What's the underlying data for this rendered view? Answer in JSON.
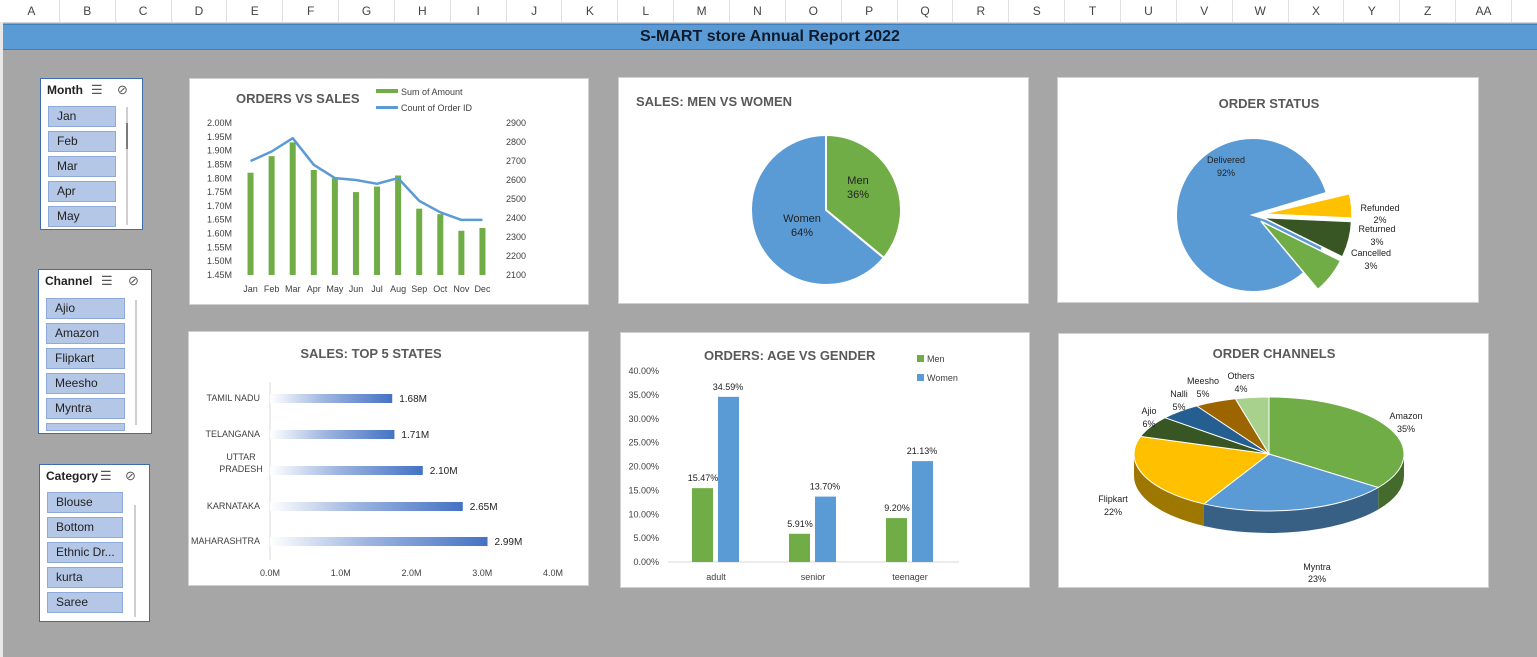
{
  "columns": [
    "A",
    "B",
    "C",
    "D",
    "E",
    "F",
    "G",
    "H",
    "I",
    "J",
    "K",
    "L",
    "M",
    "N",
    "O",
    "P",
    "Q",
    "R",
    "S",
    "T",
    "U",
    "V",
    "W",
    "X",
    "Y",
    "Z",
    "AA"
  ],
  "report_title": "S-MART store Annual Report 2022",
  "slicers": {
    "month": {
      "title": "Month",
      "items": [
        "Jan",
        "Feb",
        "Mar",
        "Apr",
        "May"
      ]
    },
    "channel": {
      "title": "Channel",
      "items": [
        "Ajio",
        "Amazon",
        "Flipkart",
        "Meesho",
        "Myntra"
      ]
    },
    "category": {
      "title": "Category",
      "items": [
        "Blouse",
        "Bottom",
        "Ethnic Dr...",
        "kurta",
        "Saree"
      ]
    }
  },
  "charts": {
    "orders_vs_sales": {
      "title": "ORDERS VS SALES",
      "legend": [
        "Sum of Amount",
        "Count of Order ID"
      ],
      "months": [
        "Jan",
        "Feb",
        "Mar",
        "Apr",
        "May",
        "Jun",
        "Jul",
        "Aug",
        "Sep",
        "Oct",
        "Nov",
        "Dec"
      ],
      "amount": [
        1.82,
        1.88,
        1.93,
        1.83,
        1.8,
        1.75,
        1.77,
        1.81,
        1.69,
        1.67,
        1.61,
        1.62
      ],
      "orders": [
        2700,
        2750,
        2820,
        2680,
        2610,
        2600,
        2580,
        2610,
        2490,
        2430,
        2390,
        2390
      ],
      "left_axis": [
        "2.00M",
        "1.95M",
        "1.90M",
        "1.85M",
        "1.80M",
        "1.75M",
        "1.70M",
        "1.65M",
        "1.60M",
        "1.55M",
        "1.50M",
        "1.45M"
      ],
      "right_axis": [
        "2900",
        "2800",
        "2700",
        "2600",
        "2500",
        "2400",
        "2300",
        "2200",
        "2100"
      ],
      "colors": {
        "bar": "#70ad47",
        "line": "#5b9bd5"
      }
    },
    "men_vs_women": {
      "title": "SALES: MEN VS WOMEN",
      "slices": [
        {
          "name": "Men",
          "pct_label": "36%",
          "value": 36,
          "color": "#70ad47"
        },
        {
          "name": "Women",
          "pct_label": "64%",
          "value": 64,
          "color": "#5b9bd5"
        }
      ]
    },
    "order_status": {
      "title": "ORDER STATUS",
      "slices": [
        {
          "name": "Delivered",
          "pct_label": "92%",
          "value": 92,
          "color": "#5b9bd5"
        },
        {
          "name": "Refunded",
          "pct_label": "2%",
          "value": 2,
          "color": "#ffc000"
        },
        {
          "name": "Returned",
          "pct_label": "3%",
          "value": 3,
          "color": "#375623"
        },
        {
          "name": "Cancelled",
          "pct_label": "3%",
          "value": 3,
          "color": "#70ad47"
        }
      ]
    },
    "top_states": {
      "title": "SALES: TOP 5 STATES",
      "states": [
        {
          "name": "TAMIL NADU",
          "value": 1.68,
          "label": "1.68M"
        },
        {
          "name": "TELANGANA",
          "value": 1.71,
          "label": "1.71M"
        },
        {
          "name": "UTTAR PRADESH",
          "line1": "UTTAR",
          "line2": "PRADESH",
          "value": 2.1,
          "label": "2.10M"
        },
        {
          "name": "KARNATAKA",
          "value": 2.65,
          "label": "2.65M"
        },
        {
          "name": "MAHARASHTRA",
          "value": 2.99,
          "label": "2.99M"
        }
      ],
      "x_ticks": [
        "0.0M",
        "1.0M",
        "2.0M",
        "3.0M",
        "4.0M"
      ],
      "color": "#4472c4"
    },
    "age_vs_gender": {
      "title": "ORDERS: AGE VS GENDER",
      "legend": [
        "Men",
        "Women"
      ],
      "groups": [
        "adult",
        "senior",
        "teenager"
      ],
      "men": [
        15.47,
        5.91,
        9.2
      ],
      "women": [
        34.59,
        13.7,
        21.13
      ],
      "men_labels": [
        "15.47%",
        "5.91%",
        "9.20%"
      ],
      "women_labels": [
        "34.59%",
        "13.70%",
        "21.13%"
      ],
      "y_ticks": [
        "40.00%",
        "35.00%",
        "30.00%",
        "25.00%",
        "20.00%",
        "15.00%",
        "10.00%",
        "5.00%",
        "0.00%"
      ],
      "colors": {
        "men": "#70ad47",
        "women": "#5b9bd5"
      }
    },
    "order_channels": {
      "title": "ORDER CHANNELS",
      "slices": [
        {
          "name": "Amazon",
          "pct_label": "35%",
          "value": 35,
          "color": "#70ad47"
        },
        {
          "name": "Myntra",
          "pct_label": "23%",
          "value": 23,
          "color": "#5b9bd5"
        },
        {
          "name": "Flipkart",
          "pct_label": "22%",
          "value": 22,
          "color": "#ffc000"
        },
        {
          "name": "Ajio",
          "pct_label": "6%",
          "value": 6,
          "color": "#375623"
        },
        {
          "name": "Nalli",
          "pct_label": "5%",
          "value": 5,
          "color": "#255e91"
        },
        {
          "name": "Meesho",
          "pct_label": "5%",
          "value": 5,
          "color": "#9c6500"
        },
        {
          "name": "Others",
          "pct_label": "4%",
          "value": 4,
          "color": "#a9d18e"
        }
      ]
    }
  }
}
